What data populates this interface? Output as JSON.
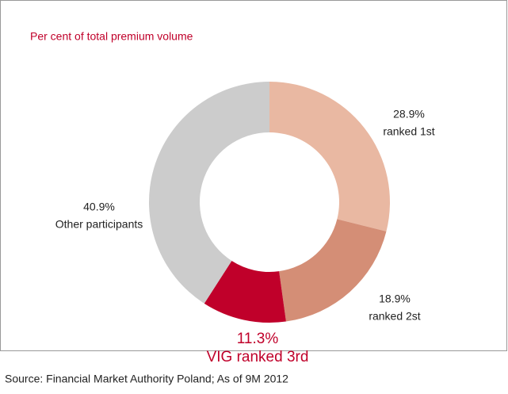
{
  "chart_data": {
    "type": "donut",
    "title": "Per cent of total premium volume",
    "categories": [
      "ranked 1st",
      "ranked 2st",
      "VIG ranked 3rd",
      "Other participants"
    ],
    "values": [
      28.9,
      18.9,
      11.3,
      40.9
    ],
    "value_labels": [
      "28.9%",
      "18.9%",
      "11.3%",
      "40.9%"
    ],
    "colors": [
      "#e9b8a2",
      "#d48e76",
      "#c0002a",
      "#cccccc"
    ],
    "source": "Source: Financial Market Authority Poland; As of 9M 2012"
  }
}
